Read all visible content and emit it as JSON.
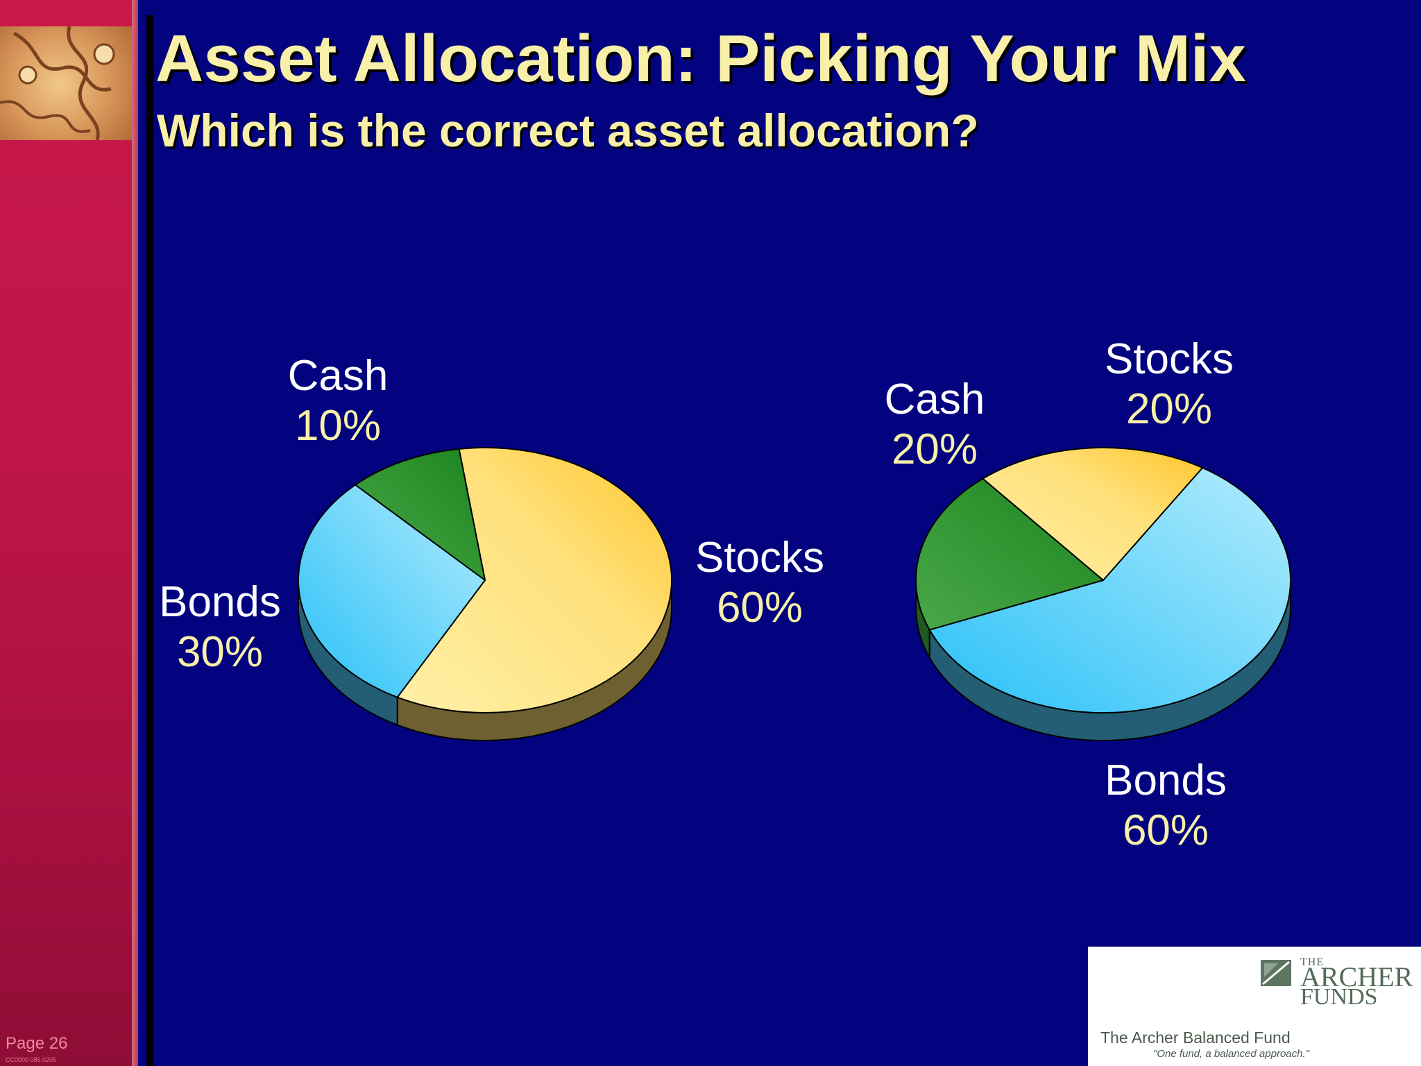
{
  "slide": {
    "title": "Asset Allocation: Picking Your Mix",
    "subtitle": "Which is the correct asset allocation?",
    "page_label": "Page 26",
    "code": "CC0000 085.0205"
  },
  "logo": {
    "the": "THE",
    "archer": "ARCHER",
    "funds": "FUNDS",
    "fund_name": "The Archer Balanced Fund",
    "tagline": "\"One fund, a balanced approach.\""
  },
  "colors": {
    "background": "#03037f",
    "sidebar": "#c0154a",
    "title": "#f8f0a8",
    "stocks": "#ffd24a",
    "bonds": "#40c8f8",
    "cash": "#2e9a34"
  },
  "chart_data": [
    {
      "type": "pie",
      "categories": [
        "Stocks",
        "Bonds",
        "Cash"
      ],
      "values": [
        60,
        30,
        10
      ],
      "labels": [
        {
          "name": "Stocks",
          "pct": "60%"
        },
        {
          "name": "Bonds",
          "pct": "30%"
        },
        {
          "name": "Cash",
          "pct": "10%"
        }
      ]
    },
    {
      "type": "pie",
      "categories": [
        "Stocks",
        "Bonds",
        "Cash"
      ],
      "values": [
        20,
        60,
        20
      ],
      "labels": [
        {
          "name": "Stocks",
          "pct": "20%"
        },
        {
          "name": "Bonds",
          "pct": "60%"
        },
        {
          "name": "Cash",
          "pct": "20%"
        }
      ]
    }
  ]
}
